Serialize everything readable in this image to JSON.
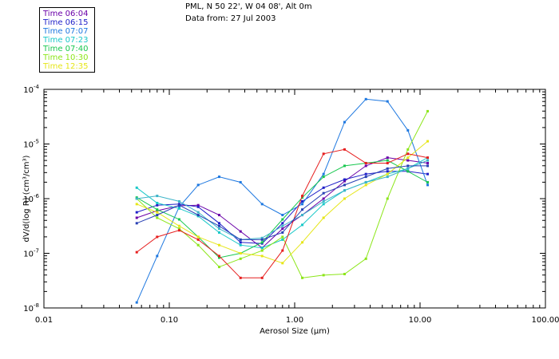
{
  "header": {
    "line1": "PML, N 50 22', W 04 08', Alt 0m",
    "line2": "Data from: 27 Jul 2003"
  },
  "chart_data": {
    "type": "line",
    "xscale": "log",
    "yscale": "log",
    "xlim": [
      0.01,
      100
    ],
    "ylim_exp": [
      -8,
      -4
    ],
    "xlabel": "Aerosol Size (μm)",
    "ylabel": "dV/d(log R) (cm³/cm³)",
    "xticks": [
      {
        "value": 0.01,
        "label": "0.01"
      },
      {
        "value": 0.1,
        "label": "0.10"
      },
      {
        "value": 1,
        "label": "1.00"
      },
      {
        "value": 10,
        "label": "10.00"
      },
      {
        "value": 100,
        "label": "100.00"
      }
    ],
    "yticks": [
      {
        "value": -8,
        "base": "10",
        "exp": "-8"
      },
      {
        "value": -7,
        "base": "10",
        "exp": "-7"
      },
      {
        "value": -6,
        "base": "10",
        "exp": "-6"
      },
      {
        "value": -5,
        "base": "10",
        "exp": "-5"
      },
      {
        "value": -4,
        "base": "10",
        "exp": "-4"
      }
    ],
    "legend_position": "top-left outside",
    "series": [
      {
        "name": "Time 06:04",
        "color": "#6a00a8",
        "x": [
          0.055,
          0.08,
          0.12,
          0.17,
          0.25,
          0.37,
          0.55,
          0.8,
          1.15,
          1.7,
          2.5,
          3.7,
          5.5,
          8,
          11.5
        ],
        "log10y": [
          -6.35,
          -6.22,
          -6.13,
          -6.12,
          -6.3,
          -6.6,
          -6.9,
          -6.55,
          -6.3,
          -6.0,
          -5.68,
          -5.4,
          -5.25,
          -5.3,
          -5.35
        ]
      },
      {
        "name": "Time 06:15",
        "color": "#1f1fc8",
        "x": [
          0.055,
          0.08,
          0.12,
          0.17,
          0.25,
          0.37,
          0.55,
          0.8,
          1.15,
          1.7,
          2.5,
          3.7,
          5.5,
          8,
          11.5
        ],
        "log10y": [
          -6.25,
          -6.12,
          -6.1,
          -6.15,
          -6.45,
          -6.8,
          -6.82,
          -6.45,
          -6.05,
          -5.8,
          -5.65,
          -5.55,
          -5.5,
          -5.5,
          -5.55
        ]
      },
      {
        "name": "Time 07:07",
        "color": "#1e78e0",
        "x": [
          0.055,
          0.08,
          0.12,
          0.17,
          0.25,
          0.37,
          0.55,
          0.8,
          1.15,
          1.7,
          2.5,
          3.7,
          5.5,
          8,
          11.5
        ],
        "log10y": [
          -7.9,
          -7.05,
          -6.15,
          -5.75,
          -5.6,
          -5.7,
          -6.1,
          -6.3,
          -6.1,
          -5.55,
          -4.6,
          -4.18,
          -4.22,
          -4.75,
          -5.75
        ]
      },
      {
        "name": "Time 07:23",
        "color": "#19c8c8",
        "x": [
          0.055,
          0.08,
          0.12,
          0.17,
          0.25,
          0.37,
          0.55,
          0.8,
          1.15,
          1.7,
          2.5,
          3.7,
          5.5,
          8,
          11.5
        ],
        "log10y": [
          -5.8,
          -6.08,
          -6.18,
          -6.32,
          -6.62,
          -6.85,
          -6.9,
          -6.75,
          -6.48,
          -6.1,
          -5.85,
          -5.7,
          -5.55,
          -5.45,
          -5.25
        ]
      },
      {
        "name": "Time 07:40",
        "color": "#19c850",
        "x": [
          0.055,
          0.08,
          0.12,
          0.17,
          0.25,
          0.37,
          0.55,
          0.8,
          1.15,
          1.7,
          2.5,
          3.7,
          5.5,
          8,
          11.5
        ],
        "log10y": [
          -5.98,
          -6.2,
          -6.38,
          -6.7,
          -7.08,
          -7.0,
          -6.8,
          -6.38,
          -5.98,
          -5.6,
          -5.4,
          -5.35,
          -5.3,
          -5.5,
          -5.7
        ]
      },
      {
        "name": "Time 10:30",
        "color": "#8ce619",
        "x": [
          0.055,
          0.08,
          0.12,
          0.17,
          0.25,
          0.37,
          0.55,
          0.8,
          1.15,
          1.7,
          2.5,
          3.7,
          5.5,
          8,
          11.5
        ],
        "log10y": [
          -6.0,
          -6.35,
          -6.55,
          -6.85,
          -7.25,
          -7.1,
          -6.95,
          -6.7,
          -7.45,
          -7.4,
          -7.38,
          -7.1,
          -6.0,
          -5.1,
          -4.4
        ]
      },
      {
        "name": "Time 12:35",
        "color": "#e6e619",
        "x": [
          0.055,
          0.08,
          0.12,
          0.17,
          0.25,
          0.37,
          0.55,
          0.8,
          1.15,
          1.7,
          2.5,
          3.7,
          5.5,
          8,
          11.5
        ],
        "log10y": [
          -6.1,
          -6.25,
          -6.5,
          -6.7,
          -6.85,
          -7.0,
          -7.05,
          -7.18,
          -6.8,
          -6.35,
          -6.0,
          -5.75,
          -5.55,
          -5.25,
          -4.95
        ]
      },
      {
        "name": "",
        "color": "#e61e1e",
        "x": [
          0.055,
          0.08,
          0.12,
          0.17,
          0.25,
          0.37,
          0.55,
          0.8,
          1.15,
          1.7,
          2.5,
          3.7,
          5.5,
          8,
          11.5
        ],
        "log10y": [
          -6.98,
          -6.7,
          -6.58,
          -6.75,
          -7.05,
          -7.45,
          -7.45,
          -6.95,
          -5.95,
          -5.18,
          -5.1,
          -5.35,
          -5.35,
          -5.18,
          -5.25
        ]
      },
      {
        "name": "",
        "color": "#3cb4c8",
        "x": [
          0.055,
          0.08,
          0.12,
          0.17,
          0.25,
          0.37,
          0.55,
          0.8,
          1.15,
          1.7,
          2.5,
          3.7,
          5.5,
          8,
          11.5
        ],
        "log10y": [
          -6.0,
          -5.95,
          -6.05,
          -6.25,
          -6.55,
          -6.75,
          -6.72,
          -6.5,
          -6.3,
          -6.05,
          -5.85,
          -5.7,
          -5.6,
          -5.45,
          -5.3
        ]
      },
      {
        "name": "",
        "color": "#2840b4",
        "x": [
          0.055,
          0.08,
          0.12,
          0.17,
          0.25,
          0.37,
          0.55,
          0.8,
          1.15,
          1.7,
          2.5,
          3.7,
          5.5,
          8,
          11.5
        ],
        "log10y": [
          -6.45,
          -6.3,
          -6.12,
          -6.3,
          -6.5,
          -6.75,
          -6.75,
          -6.62,
          -6.2,
          -5.9,
          -5.75,
          -5.6,
          -5.45,
          -5.4,
          -5.4
        ]
      }
    ]
  }
}
